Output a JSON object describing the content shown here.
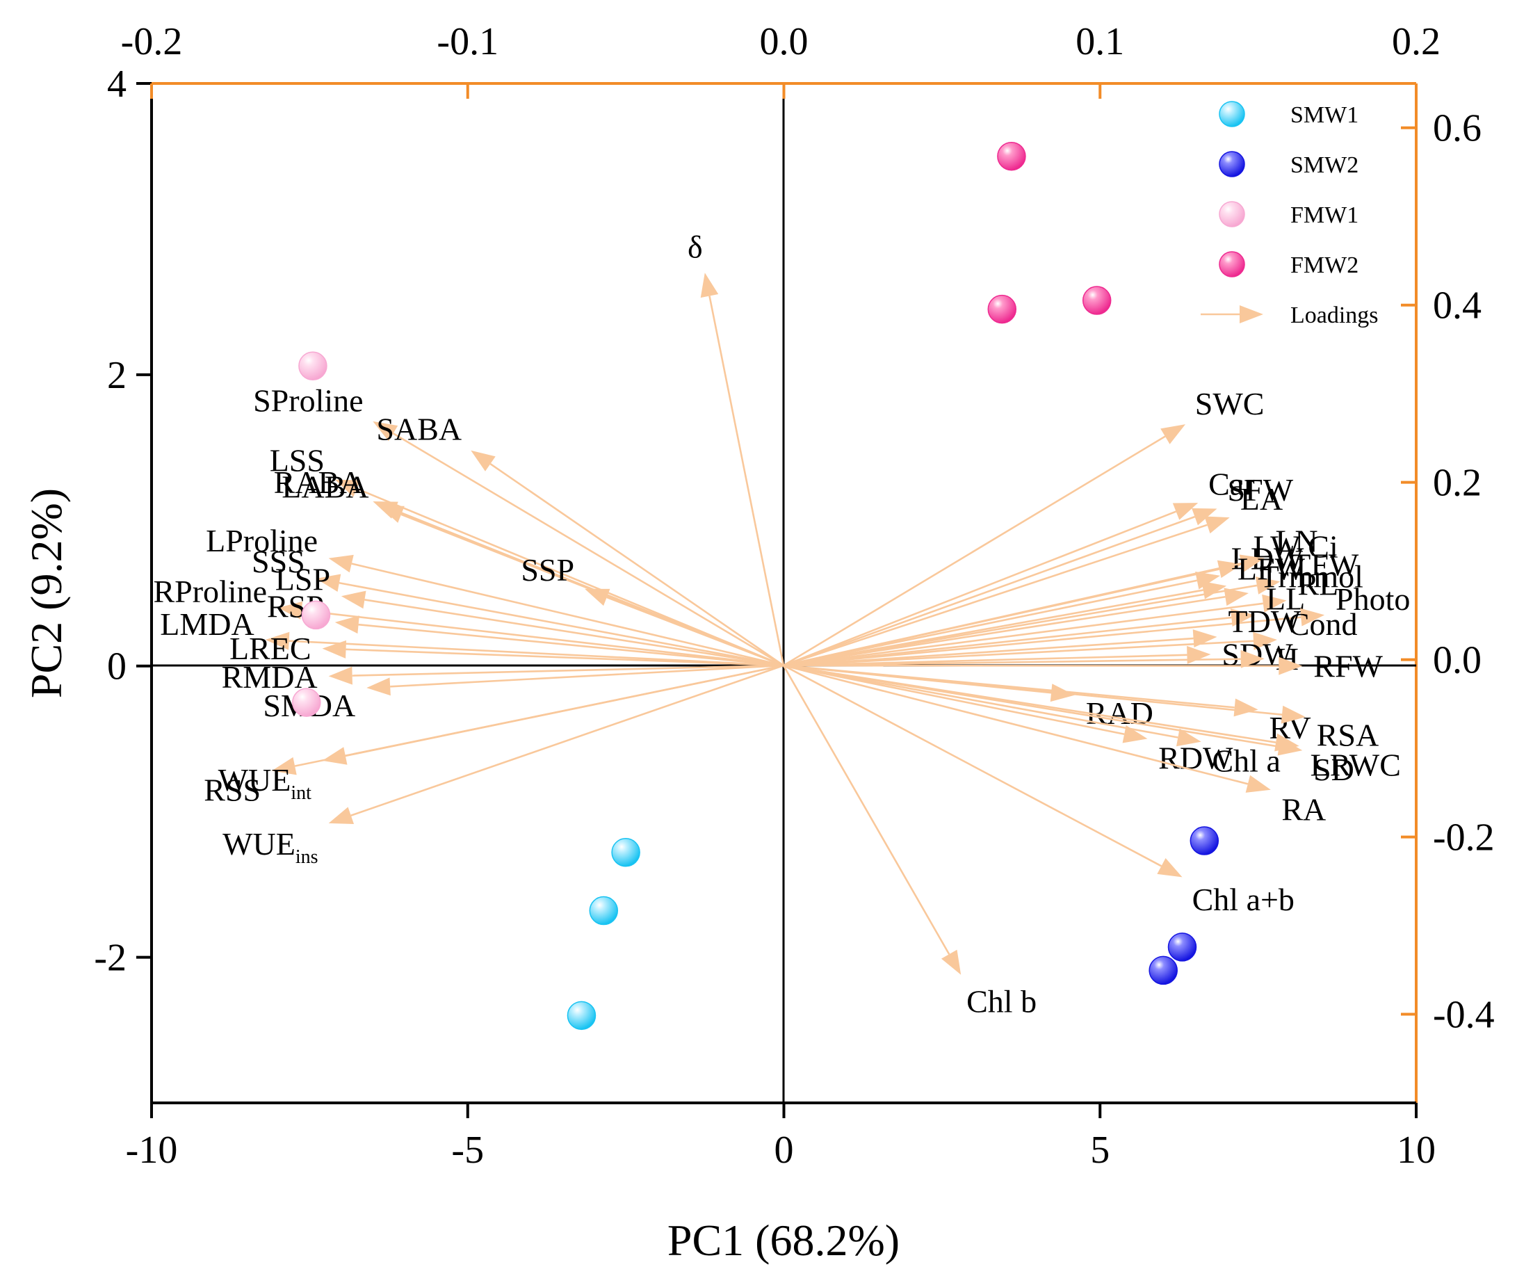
{
  "chart_data": {
    "type": "scatter",
    "subtype": "pca-biplot",
    "xlabel": "PC1 (68.2%)",
    "ylabel": "PC2 (9.2%)",
    "xlim": [
      -10,
      10
    ],
    "ylim": [
      -3,
      4
    ],
    "x_ticks": [
      "-10",
      "-5",
      "0",
      "5",
      "10"
    ],
    "y_ticks": [
      "-2",
      "0",
      "2",
      "4"
    ],
    "top_axis": {
      "lim": [
        -0.2,
        0.2
      ],
      "ticks": [
        "-0.2",
        "-0.1",
        "0.0",
        "0.1",
        "0.2"
      ],
      "color": "#F28C28"
    },
    "right_axis": {
      "lim": [
        -0.5,
        0.65
      ],
      "ticks": [
        "-0.4",
        "-0.2",
        "0.0",
        "0.2",
        "0.4",
        "0.6"
      ],
      "color": "#F28C28"
    },
    "loading_color": "#F9C89B",
    "series": [
      {
        "name": "SMW1",
        "color": "#19C3F2",
        "points": [
          [
            -2.5,
            -1.28
          ],
          [
            -2.85,
            -1.68
          ],
          [
            -3.2,
            -2.4
          ]
        ]
      },
      {
        "name": "SMW2",
        "color": "#1515E0",
        "points": [
          [
            6.65,
            -1.2
          ],
          [
            6.3,
            -1.93
          ],
          [
            6.0,
            -2.09
          ]
        ]
      },
      {
        "name": "FMW1",
        "color": "#F7A8D2",
        "points": [
          [
            -7.45,
            2.06
          ],
          [
            -7.4,
            0.35
          ],
          [
            -7.55,
            -0.25
          ]
        ]
      },
      {
        "name": "FMW2",
        "color": "#EE2A90",
        "points": [
          [
            3.6,
            3.5
          ],
          [
            3.45,
            2.45
          ],
          [
            4.95,
            2.51
          ]
        ]
      }
    ],
    "legend": [
      "SMW1",
      "SMW2",
      "FMW1",
      "FMW2",
      "Loadings"
    ],
    "loadings": [
      {
        "label": "δ",
        "x": -1.25,
        "y": 2.7
      },
      {
        "label": "SProline",
        "x": -6.5,
        "y": 1.68
      },
      {
        "label": "SABA",
        "x": -4.95,
        "y": 1.48
      },
      {
        "label": "LSS",
        "x": -7.1,
        "y": 1.28
      },
      {
        "label": "RABA",
        "x": -6.5,
        "y": 1.13
      },
      {
        "label": "LABA",
        "x": -6.4,
        "y": 1.1
      },
      {
        "label": "SSP",
        "x": -3.15,
        "y": 0.53
      },
      {
        "label": "LProline",
        "x": -7.2,
        "y": 0.74
      },
      {
        "label": "SSS",
        "x": -7.4,
        "y": 0.6
      },
      {
        "label": "LSP",
        "x": -7.0,
        "y": 0.48
      },
      {
        "label": "RProline",
        "x": -8.0,
        "y": 0.4
      },
      {
        "label": "RSP",
        "x": -7.1,
        "y": 0.3
      },
      {
        "label": "LMDA",
        "x": -8.2,
        "y": 0.18
      },
      {
        "label": "LREC",
        "x": -7.3,
        "y": 0.12
      },
      {
        "label": "RMDA",
        "x": -7.2,
        "y": -0.07
      },
      {
        "label": "SMDA",
        "x": -6.6,
        "y": -0.15
      },
      {
        "label": "RSS",
        "x": -8.1,
        "y": -0.72
      },
      {
        "label": "WUEint",
        "x": -7.3,
        "y": -0.65
      },
      {
        "label": "WUEins",
        "x": -7.2,
        "y": -1.08
      },
      {
        "label": "SWC",
        "x": 6.35,
        "y": 1.66
      },
      {
        "label": "Car",
        "x": 6.55,
        "y": 1.12
      },
      {
        "label": "SFW",
        "x": 6.85,
        "y": 1.08
      },
      {
        "label": "LA",
        "x": 7.05,
        "y": 1.02
      },
      {
        "label": "LW Ci",
        "x": 7.25,
        "y": 0.7
      },
      {
        "label": "LDW",
        "x": 6.9,
        "y": 0.62
      },
      {
        "label": "LN",
        "x": 7.6,
        "y": 0.74
      },
      {
        "label": "TFW",
        "x": 7.85,
        "y": 0.58
      },
      {
        "label": "LFW",
        "x": 7.0,
        "y": 0.55
      },
      {
        "label": "Trmmol",
        "x": 7.35,
        "y": 0.5
      },
      {
        "label": "RL",
        "x": 7.95,
        "y": 0.45
      },
      {
        "label": "LL",
        "x": 7.45,
        "y": 0.35
      },
      {
        "label": "Photo",
        "x": 8.55,
        "y": 0.35
      },
      {
        "label": "TDW",
        "x": 6.85,
        "y": 0.2
      },
      {
        "label": "Cond",
        "x": 7.8,
        "y": 0.18
      },
      {
        "label": "SDW",
        "x": 6.75,
        "y": 0.08
      },
      {
        "label": "H",
        "x": 7.6,
        "y": 0.05
      },
      {
        "label": "RFW",
        "x": 8.2,
        "y": 0.0
      },
      {
        "label": "RAD",
        "x": 4.6,
        "y": -0.2
      },
      {
        "label": "Chl a",
        "x": 6.6,
        "y": -0.52
      },
      {
        "label": "RV",
        "x": 7.5,
        "y": -0.3
      },
      {
        "label": "RSA",
        "x": 8.25,
        "y": -0.35
      },
      {
        "label": "SD",
        "x": 8.2,
        "y": -0.58
      },
      {
        "label": "RDW",
        "x": 5.75,
        "y": -0.5
      },
      {
        "label": "LRWC",
        "x": 8.15,
        "y": -0.55
      },
      {
        "label": "RA",
        "x": 7.7,
        "y": -0.85
      },
      {
        "label": "Chl a+b",
        "x": 6.3,
        "y": -1.45
      },
      {
        "label": "Chl b",
        "x": 2.8,
        "y": -2.12
      }
    ]
  }
}
